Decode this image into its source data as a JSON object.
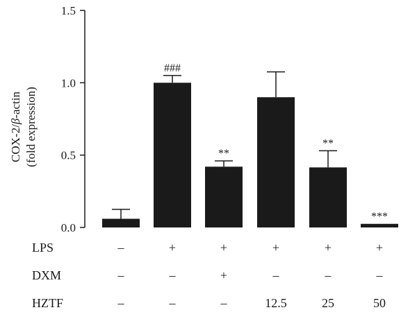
{
  "chart_data": {
    "type": "bar",
    "ylabel_line1": "COX-2/",
    "ylabel_beta": "β",
    "ylabel_line1_suffix": "-actin",
    "ylabel_line2": "(fold expression)",
    "ylim": [
      0,
      1.5
    ],
    "yticks": [
      "0.0",
      "0.5",
      "1.0",
      "1.5"
    ],
    "values": [
      0.06,
      1.0,
      0.42,
      0.9,
      0.415,
      0.025
    ],
    "errors": [
      0.065,
      0.05,
      0.04,
      0.175,
      0.115,
      0.0
    ],
    "significance": [
      "",
      "###",
      "**",
      "",
      "**",
      "***"
    ],
    "bar_color": "#1a1a1a",
    "grid": false,
    "legend": "none"
  },
  "conditions": [
    {
      "label": "LPS",
      "values": [
        "–",
        "+",
        "+",
        "+",
        "+",
        "+"
      ]
    },
    {
      "label": "DXM",
      "values": [
        "–",
        "–",
        "+",
        "–",
        "–",
        "–"
      ]
    },
    {
      "label": "HZTF",
      "values": [
        "–",
        "–",
        "–",
        "12.5",
        "25",
        "50"
      ]
    }
  ]
}
